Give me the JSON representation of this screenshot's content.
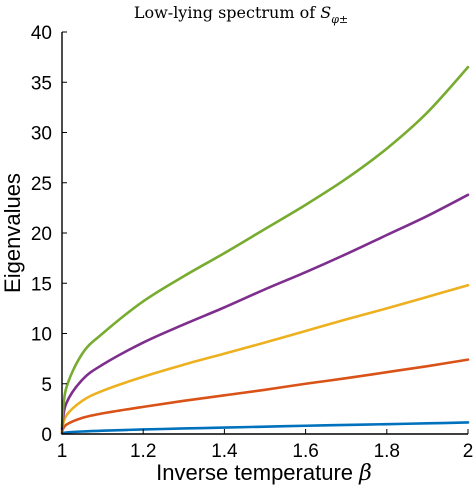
{
  "chart_data": {
    "type": "line",
    "title": {
      "main": "Low-lying spectrum of ",
      "symbol": "S",
      "subscript": "φ±"
    },
    "xlabel": {
      "text": "Inverse temperature ",
      "symbol": "β"
    },
    "ylabel": "Eigenvalues",
    "xlim": [
      1,
      2
    ],
    "ylim": [
      0,
      40
    ],
    "x_ticks": [
      1,
      1.2,
      1.4,
      1.6,
      1.8,
      2
    ],
    "x_tick_labels": [
      "1",
      "1.2",
      "1.4",
      "1.6",
      "1.8",
      "2"
    ],
    "y_ticks": [
      0,
      5,
      10,
      15,
      20,
      25,
      30,
      35,
      40
    ],
    "y_tick_labels": [
      "0",
      "5",
      "10",
      "15",
      "20",
      "25",
      "30",
      "35",
      "40"
    ],
    "grid": false,
    "x": [
      1.0,
      1.01,
      1.05,
      1.1,
      1.2,
      1.3,
      1.4,
      1.5,
      1.6,
      1.7,
      1.8,
      1.9,
      2.0
    ],
    "series": [
      {
        "color": "#0072BD",
        "values": [
          0.05,
          0.15,
          0.25,
          0.33,
          0.45,
          0.55,
          0.64,
          0.73,
          0.82,
          0.9,
          0.98,
          1.06,
          1.15
        ]
      },
      {
        "color": "#D95319",
        "values": [
          0.2,
          0.9,
          1.6,
          2.05,
          2.7,
          3.3,
          3.85,
          4.4,
          5.0,
          5.55,
          6.15,
          6.75,
          7.4
        ]
      },
      {
        "color": "#EDB120",
        "values": [
          0.3,
          1.8,
          3.3,
          4.3,
          5.7,
          6.9,
          8.0,
          9.1,
          10.25,
          11.4,
          12.5,
          13.65,
          14.8
        ]
      },
      {
        "color": "#7E2F8E",
        "values": [
          0.5,
          3.0,
          5.4,
          6.9,
          9.1,
          10.9,
          12.6,
          14.4,
          16.1,
          17.9,
          19.8,
          21.7,
          23.8
        ]
      },
      {
        "color": "#77AC30",
        "values": [
          0.8,
          4.5,
          8.0,
          10.0,
          13.2,
          15.7,
          18.0,
          20.4,
          22.8,
          25.4,
          28.4,
          32.0,
          36.5
        ]
      }
    ]
  }
}
